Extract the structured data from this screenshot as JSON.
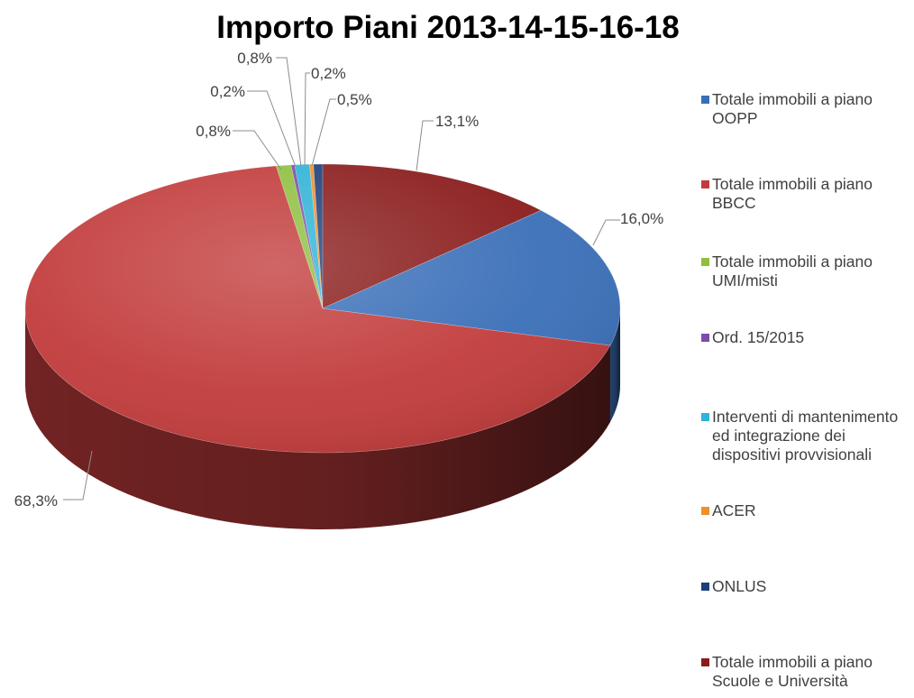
{
  "chart_data": {
    "type": "pie",
    "style": "3d",
    "title": "Importo Piani 2013-14-15-16-18",
    "legend_position": "right",
    "slices": [
      {
        "name": "Totale immobili a piano OOPP",
        "value": 16.0,
        "label": "16,0%",
        "color": "#3a6fb8"
      },
      {
        "name": "Totale immobili a piano BBCC",
        "value": 68.3,
        "label": "68,3%",
        "color": "#c23b3b"
      },
      {
        "name": "Totale immobili a piano UMI/misti",
        "value": 0.8,
        "label": "0,8%",
        "color": "#8fbf3f"
      },
      {
        "name": "Ord. 15/2015",
        "value": 0.2,
        "label": "0,2%",
        "color": "#7b4fa8"
      },
      {
        "name": "Interventi di mantenimento ed integrazione dei dispositivi provvisionali",
        "value": 0.8,
        "label": "0,8%",
        "color": "#2fb3d6"
      },
      {
        "name": "ACER",
        "value": 0.2,
        "label": "0,2%",
        "color": "#f08f2a"
      },
      {
        "name": "ONLUS",
        "value": 0.5,
        "label": "0,5%",
        "color": "#1f3f7a"
      },
      {
        "name": "Totale immobili a piano Scuole e Università",
        "value": 13.1,
        "label": "13,1%",
        "color": "#8a1c1c"
      }
    ]
  }
}
